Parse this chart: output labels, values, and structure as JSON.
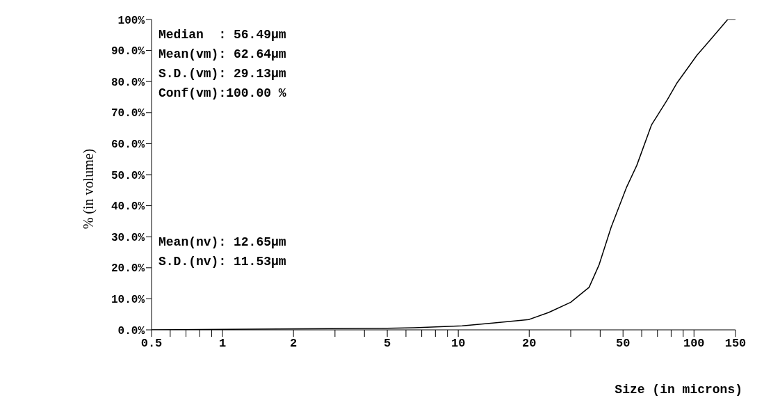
{
  "chart_data": {
    "type": "line",
    "xlabel": "Size (in microns)",
    "ylabel": "% (in volume)",
    "x": [
      0.5,
      5,
      6.5,
      10.4,
      14,
      19.9,
      24.2,
      30,
      35.9,
      39.6,
      44.5,
      51.8,
      57.2,
      66,
      76.9,
      84.8,
      103,
      119,
      139,
      150
    ],
    "series": [
      {
        "color": "#000000",
        "values": [
          0,
          0.5,
          0.7,
          1.3,
          2.2,
          3.3,
          5.6,
          8.9,
          13.7,
          21,
          33,
          46,
          53,
          66,
          74,
          79.6,
          88.5,
          94,
          100,
          100
        ]
      }
    ],
    "log": "x",
    "xlim": [
      0.5,
      150
    ],
    "xticks": [
      {
        "value": 0.5,
        "label": "0.5"
      },
      {
        "value": 0.6,
        "label": null
      },
      {
        "value": 0.7,
        "label": null
      },
      {
        "value": 0.8,
        "label": null
      },
      {
        "value": 0.9,
        "label": null
      },
      1,
      2,
      {
        "value": 3,
        "label": null
      },
      {
        "value": 4,
        "label": null
      },
      5,
      {
        "value": 6,
        "label": null
      },
      {
        "value": 7,
        "label": null
      },
      {
        "value": 8,
        "label": null
      },
      {
        "value": 9,
        "label": null
      },
      10,
      20,
      {
        "value": 30,
        "label": null
      },
      {
        "value": 40,
        "label": null
      },
      50,
      {
        "value": 60,
        "label": null
      },
      {
        "value": 70,
        "label": null
      },
      {
        "value": 80,
        "label": null
      },
      {
        "value": 90,
        "label": null
      },
      100,
      150
    ],
    "ylim": [
      0,
      100
    ],
    "yticks": [
      {
        "value": 0,
        "label": "0.0%"
      },
      {
        "value": 10,
        "label": "10.0%"
      },
      {
        "value": 20,
        "label": "20.0%"
      },
      {
        "value": 30,
        "label": "30.0%"
      },
      {
        "value": 40,
        "label": "40.0%"
      },
      {
        "value": 50,
        "label": "50.0%"
      },
      {
        "value": 60,
        "label": "60.0%"
      },
      {
        "value": 70,
        "label": "70.0%"
      },
      {
        "value": 80,
        "label": "80.0%"
      },
      {
        "value": 90,
        "label": "90.0%"
      },
      {
        "value": 100,
        "label": "100%"
      }
    ],
    "grid": false,
    "marker": "none",
    "line_style": "solid",
    "annotations": [
      "Median  : 56.49μm",
      "Mean(vm): 62.64μm",
      "S.D.(vm): 29.13μm",
      "Conf(vm):100.00 %",
      "Mean(nv): 12.65μm",
      "S.D.(nv): 11.53μm"
    ]
  }
}
